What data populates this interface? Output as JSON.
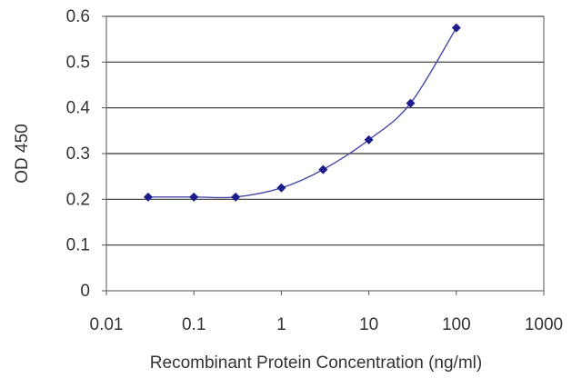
{
  "chart_data": {
    "type": "line",
    "title": "",
    "xlabel": "Recombinant Protein Concentration (ng/ml)",
    "ylabel": "OD 450",
    "x_scale": "log",
    "xlim": [
      0.01,
      1000
    ],
    "ylim": [
      0,
      0.6
    ],
    "x_ticks": [
      "0.01",
      "0.1",
      "1",
      "10",
      "100",
      "1000"
    ],
    "y_ticks": [
      "0",
      "0.1",
      "0.2",
      "0.3",
      "0.4",
      "0.5",
      "0.6"
    ],
    "grid": "horizontal",
    "series": [
      {
        "x": [
          0.03,
          0.1,
          0.3,
          1,
          3,
          10,
          30,
          100
        ],
        "y": [
          0.205,
          0.205,
          0.205,
          0.225,
          0.265,
          0.33,
          0.41,
          0.575
        ]
      }
    ],
    "colors": {
      "line": "#4a4aa8",
      "marker": "#1c1c8c",
      "grid": "#333333",
      "axis": "#555555"
    }
  }
}
